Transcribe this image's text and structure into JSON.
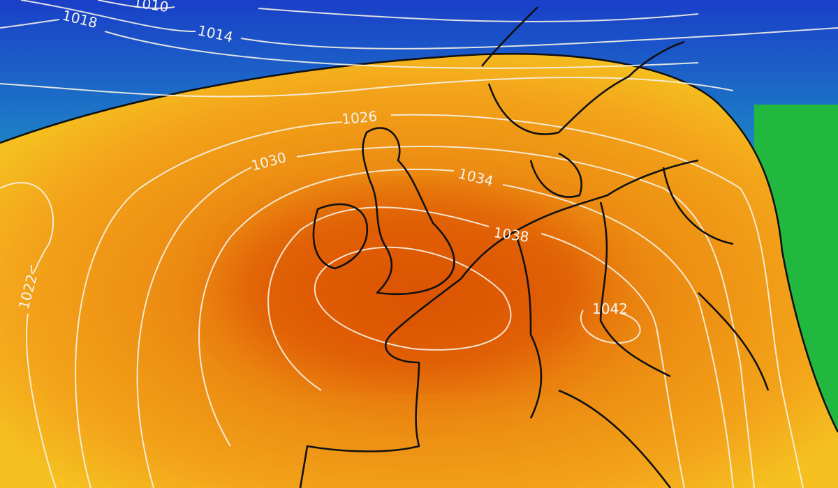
{
  "map": {
    "type": "sea-level pressure chart",
    "region": "Europe / North Atlantic",
    "colors": {
      "low_pressure": "#1a3fc8",
      "mid_low": "#1e9fc0",
      "transition": "#1fb84a",
      "boundary_line": "#111111",
      "mid_high": "#f2b21a",
      "high": "#ec8e12",
      "high_core": "#df5a08",
      "isobar": "#f6f2e6"
    },
    "isobar_labels": [
      "1010",
      "1018",
      "1014",
      "1026",
      "1030",
      "1034",
      "1038",
      "1042",
      "1022"
    ]
  }
}
